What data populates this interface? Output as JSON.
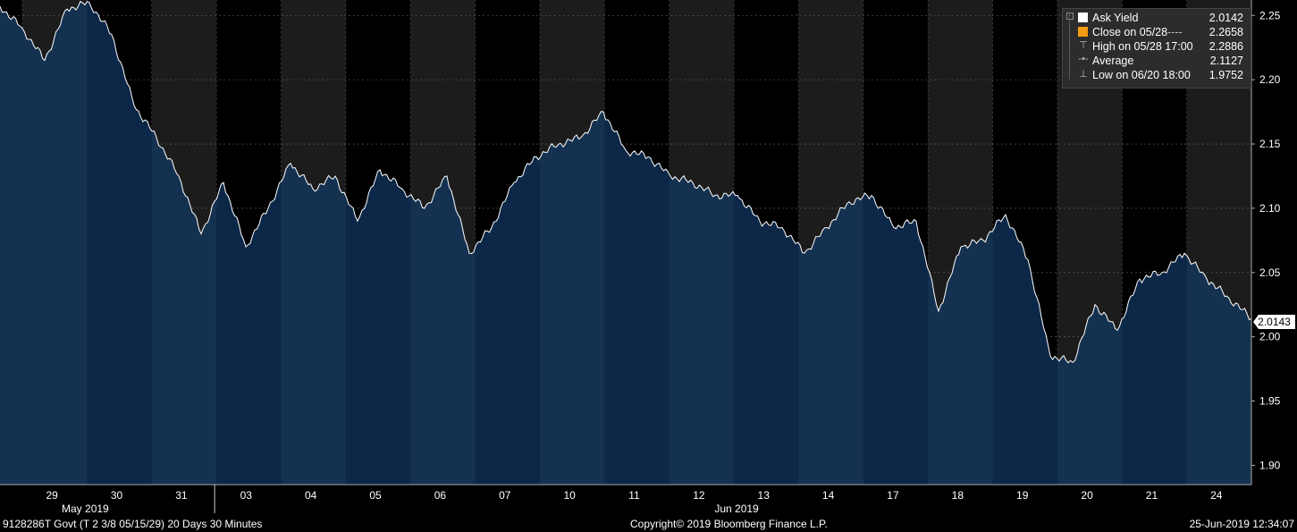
{
  "legend": {
    "ask_yield": {
      "label": "Ask Yield",
      "value": "2.0142",
      "color": "#ffffff"
    },
    "close": {
      "label": "Close on 05/28",
      "dash": "----",
      "value": "2.2658",
      "color": "#f39c12"
    },
    "high": {
      "label": "High on 05/28 17:00",
      "value": "2.2886"
    },
    "average": {
      "label": "Average",
      "value": "2.1127"
    },
    "low": {
      "label": "Low on 06/20 18:00",
      "value": "1.9752"
    }
  },
  "last_price_tag": "2.0143",
  "footer": {
    "security": "9128286T Govt (T 2 3/8 05/15/29) 20 Days 30 Minutes",
    "copyright": "Copyright© 2019 Bloomberg Finance L.P.",
    "timestamp": "25-Jun-2019 12:34:07"
  },
  "colors": {
    "background": "#000000",
    "area_fill": "#0c2747",
    "area_fill_alt": "#153150",
    "band_dark": "#1c1c1c",
    "line": "#ffffff"
  },
  "chart_data": {
    "type": "area",
    "title": "",
    "xlabel": "",
    "ylabel": "",
    "ylim": [
      1.885,
      2.262
    ],
    "yticks": [
      "1.90",
      "1.95",
      "2.00",
      "2.05",
      "2.10",
      "2.15",
      "2.20",
      "2.25"
    ],
    "grid": true,
    "legend_position": "top-right",
    "month_labels": [
      "May 2019",
      "Jun 2019"
    ],
    "days": [
      "29",
      "30",
      "31",
      "03",
      "04",
      "05",
      "06",
      "07",
      "10",
      "11",
      "12",
      "13",
      "14",
      "17",
      "18",
      "19",
      "20",
      "21",
      "24"
    ],
    "series": [
      {
        "name": "Ask Yield",
        "x": [
          "05/29 open",
          "05/29",
          "05/29 low",
          "05/30",
          "05/30 high",
          "05/31 open",
          "05/31",
          "05/31 close",
          "06/03 open",
          "06/03",
          "06/03 close",
          "06/04",
          "06/04",
          "06/04 close",
          "06/05",
          "06/05",
          "06/05 close",
          "06/06",
          "06/06",
          "06/06 close",
          "06/07",
          "06/07 low",
          "06/07 close",
          "06/10",
          "06/10",
          "06/10 close",
          "06/11",
          "06/11 high",
          "06/11 close",
          "06/12",
          "06/12",
          "06/12 close",
          "06/13",
          "06/13",
          "06/13 close",
          "06/14",
          "06/14 low",
          "06/14 close",
          "06/17",
          "06/17",
          "06/17 close",
          "06/18",
          "06/18 low",
          "06/18 close",
          "06/19",
          "06/19 high",
          "06/19 close",
          "06/20",
          "06/20 low",
          "06/20 close",
          "06/21",
          "06/21",
          "06/21 close",
          "06/24",
          "06/24",
          "06/24 close",
          "06/25"
        ],
        "values": [
          2.257,
          2.24,
          2.215,
          2.255,
          2.26,
          2.235,
          2.18,
          2.155,
          2.125,
          2.08,
          2.12,
          2.07,
          2.1,
          2.135,
          2.115,
          2.125,
          2.09,
          2.13,
          2.115,
          2.1,
          2.125,
          2.065,
          2.085,
          2.12,
          2.14,
          2.15,
          2.155,
          2.175,
          2.145,
          2.14,
          2.125,
          2.12,
          2.11,
          2.11,
          2.09,
          2.085,
          2.065,
          2.085,
          2.105,
          2.11,
          2.085,
          2.09,
          2.02,
          2.07,
          2.075,
          2.095,
          2.06,
          1.985,
          1.98,
          2.025,
          2.005,
          2.045,
          2.05,
          2.065,
          2.045,
          2.03,
          2.0142
        ]
      }
    ]
  }
}
